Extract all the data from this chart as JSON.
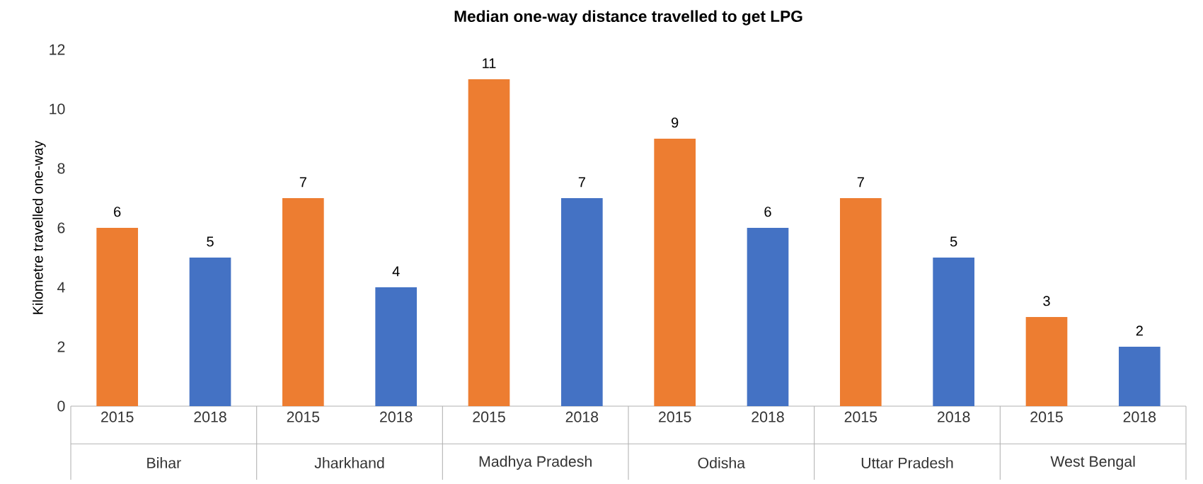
{
  "chart_data": {
    "type": "bar",
    "title": "Median one-way distance travelled to get LPG",
    "ylabel": "Kilometre travelled one-way",
    "categories": [
      "2015",
      "2018",
      "2015",
      "2018",
      "2015",
      "2018",
      "2015",
      "2018",
      "2015",
      "2018",
      "2015",
      "2018"
    ],
    "values": [
      6,
      5,
      7,
      4,
      11,
      7,
      9,
      6,
      7,
      5,
      3,
      2
    ],
    "colors": [
      "#ed7d31",
      "#4472c4",
      "#ed7d31",
      "#4472c4",
      "#ed7d31",
      "#4472c4",
      "#ed7d31",
      "#4472c4",
      "#ed7d31",
      "#4472c4",
      "#ed7d31",
      "#4472c4"
    ],
    "ylim": [
      0,
      12
    ],
    "yticks": [
      0,
      2,
      4,
      6,
      8,
      10,
      12
    ],
    "data_labels": true,
    "grid": false,
    "annotations": [
      "Bihar",
      "Jharkhand",
      "Madhya Pradesh",
      "Odisha",
      "Uttar Pradesh",
      "West Bengal"
    ]
  }
}
